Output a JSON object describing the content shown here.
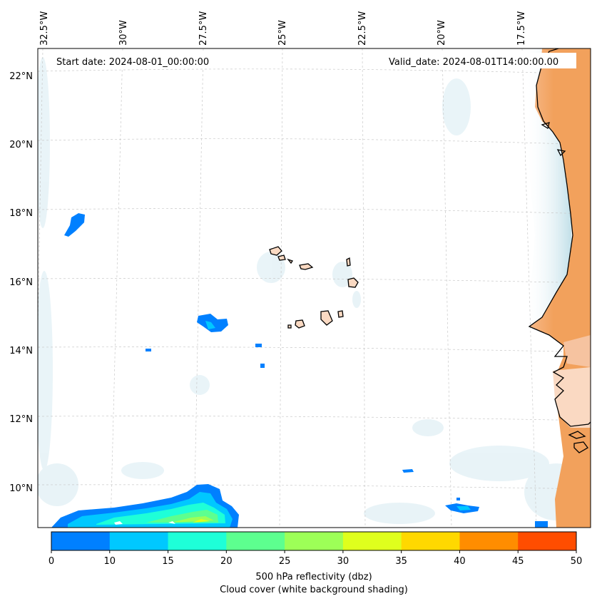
{
  "map": {
    "start_date": "Start date: 2024-08-01_00:00:00",
    "valid_date": "Valid_date: 2024-08-01T14:00:00.00",
    "lon_labels": [
      "32.5°W",
      "30°W",
      "27.5°W",
      "25°W",
      "22.5°W",
      "20°W",
      "17.5°W"
    ],
    "lat_labels": [
      "22°N",
      "20°N",
      "18°N",
      "16°N",
      "14°N",
      "12°N",
      "10°N"
    ]
  },
  "colorbar": {
    "ticks": [
      "0",
      "10",
      "15",
      "20",
      "25",
      "30",
      "35",
      "40",
      "45",
      "50"
    ],
    "colors": [
      "#0080ff",
      "#00c8ff",
      "#1effd8",
      "#5dff8f",
      "#9dff57",
      "#dfff1d",
      "#ffd800",
      "#ff8d00",
      "#ff4d00"
    ],
    "label_line1": "500 hPa reflectivity (dbz)",
    "label_line2": "Cloud cover (white background shading)"
  },
  "colors": {
    "land_orange": "#f2a15c",
    "land_peach": "#fad9c2",
    "cloud_haze": "#cfe6ee"
  }
}
